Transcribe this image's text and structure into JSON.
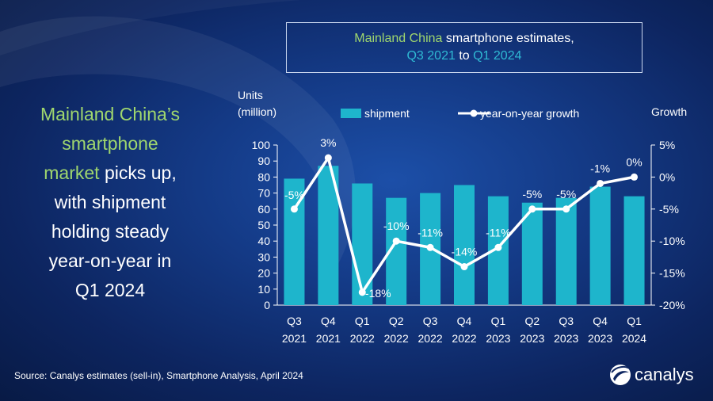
{
  "title": {
    "part1": "Mainland China",
    "part2": " smartphone estimates,",
    "part3": "Q3 2021",
    "part4": " to ",
    "part5": "Q1 2024"
  },
  "headline": {
    "line1": "Mainland China’s",
    "line2": "smartphone",
    "line3_green": "market",
    "line3_rest": " picks up,",
    "line4": "with shipment",
    "line5": "holding steady",
    "line6": "year-on-year in",
    "line7": "Q1 2024"
  },
  "source": "Source: Canalys estimates (sell-in), Smartphone Analysis, April 2024",
  "logo_text": "canalys",
  "colors": {
    "bar": "#1eb5cc",
    "line": "#ffffff",
    "title_green": "#9fd66e",
    "title_cyan": "#2fb9d3"
  },
  "chart_data": {
    "type": "bar",
    "y_left_label_line1": "Units",
    "y_left_label_line2": "(million)",
    "y_right_label": "Growth",
    "categories": [
      [
        "Q3",
        "2021"
      ],
      [
        "Q4",
        "2021"
      ],
      [
        "Q1",
        "2022"
      ],
      [
        "Q2",
        "2022"
      ],
      [
        "Q3",
        "2022"
      ],
      [
        "Q4",
        "2022"
      ],
      [
        "Q1",
        "2023"
      ],
      [
        "Q2",
        "2023"
      ],
      [
        "Q3",
        "2023"
      ],
      [
        "Q4",
        "2023"
      ],
      [
        "Q1",
        "2024"
      ]
    ],
    "series": [
      {
        "name": "shipment",
        "type": "bar",
        "axis": "left",
        "values": [
          79,
          87,
          76,
          67,
          70,
          75,
          68,
          64,
          67,
          74,
          68
        ]
      },
      {
        "name": "year-on-year growth",
        "type": "line",
        "axis": "right",
        "values": [
          -5,
          3,
          -18,
          -10,
          -11,
          -14,
          -11,
          -5,
          -5,
          -1,
          0
        ],
        "labels": [
          "-5%",
          "3%",
          "-18%",
          "-10%",
          "-11%",
          "-14%",
          "-11%",
          "-5%",
          "-5%",
          "-1%",
          "0%"
        ]
      }
    ],
    "y_left_range": [
      0,
      100
    ],
    "y_left_ticks": [
      "0",
      "10",
      "20",
      "30",
      "40",
      "50",
      "60",
      "70",
      "80",
      "90",
      "100"
    ],
    "y_right_range": [
      -20,
      5
    ],
    "y_right_ticks": [
      "-20%",
      "-15%",
      "-10%",
      "-5%",
      "0%",
      "5%"
    ],
    "legend_position": "top"
  }
}
